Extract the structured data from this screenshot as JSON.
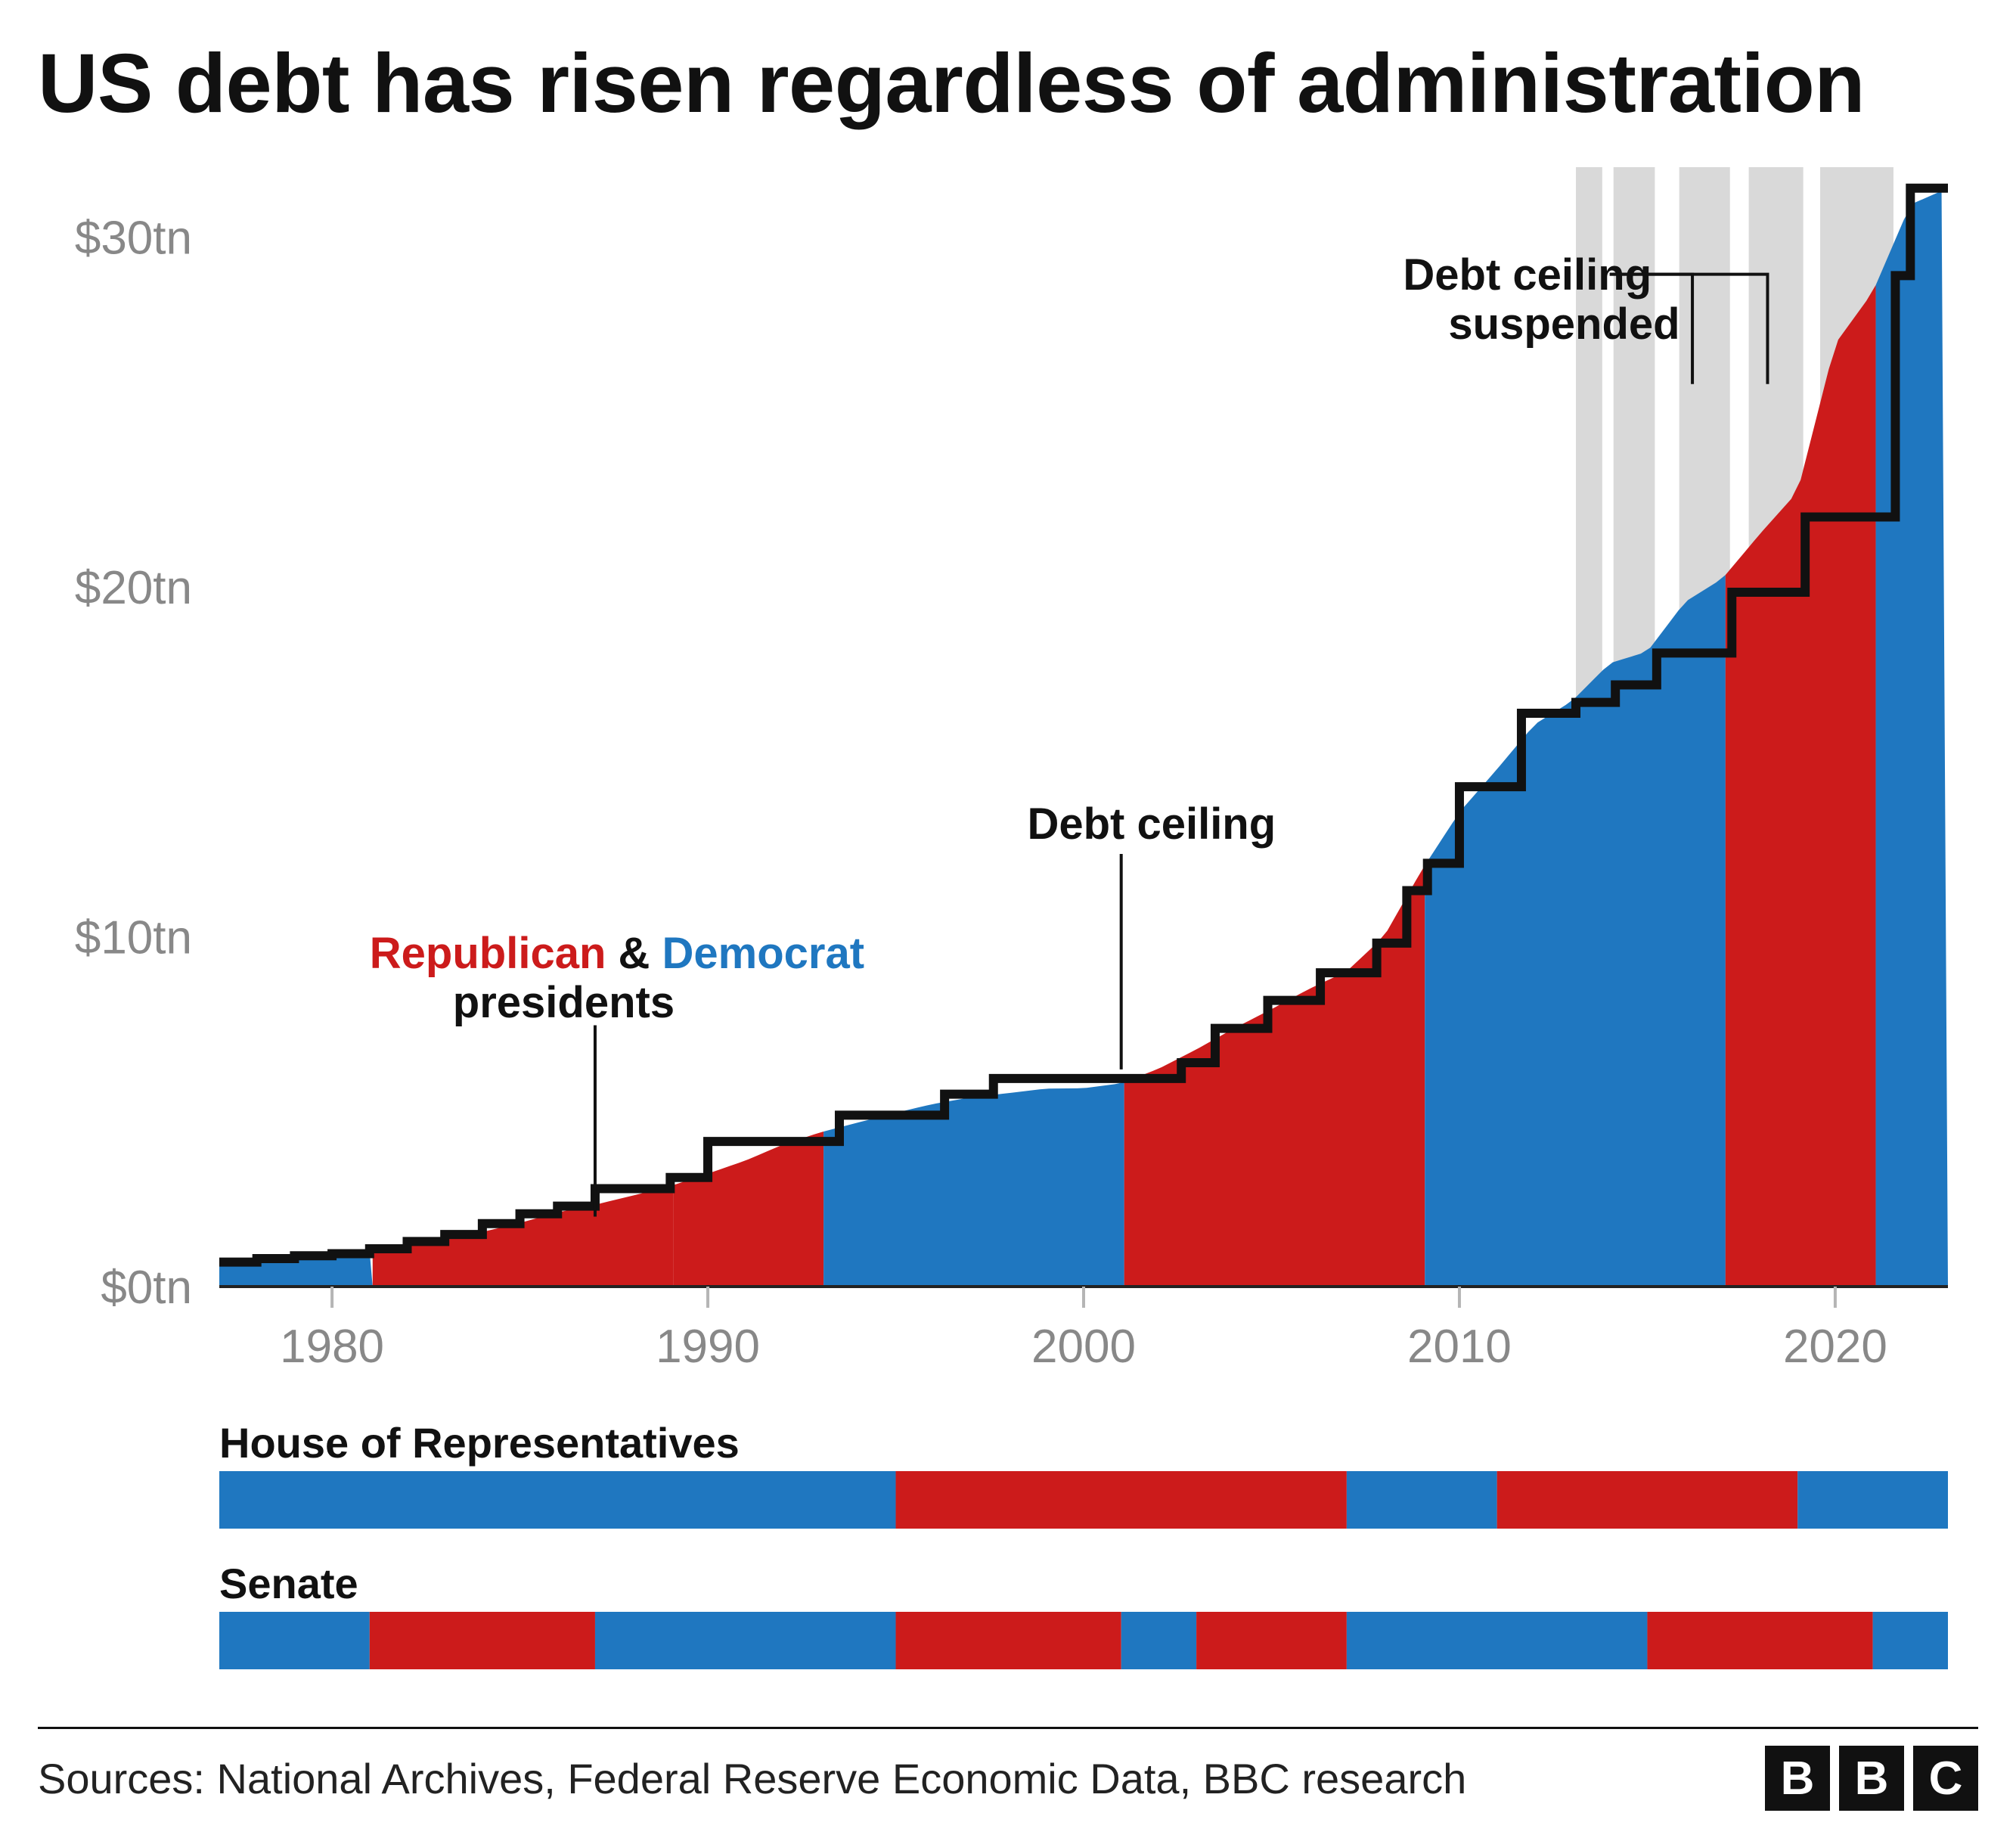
{
  "title": "US debt has risen regardless of administration",
  "source": "Sources: National Archives, Federal Reserve Economic Data, BBC research",
  "logo_letters": [
    "B",
    "B",
    "C"
  ],
  "colors": {
    "republican": "#cc1b1b",
    "democrat": "#1f77c0",
    "ceiling_line": "#111111",
    "suspended_band": "#d9d9d9",
    "grid": "#dcdcdc",
    "axis_text": "#888888",
    "axis_line": "#b5b5b5",
    "baseline": "#222222",
    "text": "#111111",
    "bg": "#ffffff"
  },
  "chart": {
    "type": "area+step",
    "x_start": 1977,
    "x_end": 2023,
    "xticks": [
      1980,
      1990,
      2000,
      2010,
      2020
    ],
    "ylim": [
      0,
      32
    ],
    "yticks": [
      0,
      10,
      20,
      30
    ],
    "ytick_labels": [
      "$0tn",
      "$10tn",
      "$20tn",
      "$30tn"
    ],
    "title_fontsize": 110,
    "axis_fontsize": 62,
    "annot_fontsize": 58,
    "ceiling_line_width": 12,
    "debt": [
      {
        "year": 1977.0,
        "v": 0.7
      },
      {
        "year": 1978.0,
        "v": 0.77
      },
      {
        "year": 1979.0,
        "v": 0.83
      },
      {
        "year": 1980.0,
        "v": 0.91
      },
      {
        "year": 1981.0,
        "v": 1.0
      },
      {
        "year": 1982.0,
        "v": 1.14
      },
      {
        "year": 1983.0,
        "v": 1.37
      },
      {
        "year": 1984.0,
        "v": 1.56
      },
      {
        "year": 1985.0,
        "v": 1.82
      },
      {
        "year": 1986.0,
        "v": 2.12
      },
      {
        "year": 1987.0,
        "v": 2.34
      },
      {
        "year": 1988.0,
        "v": 2.6
      },
      {
        "year": 1989.0,
        "v": 2.87
      },
      {
        "year": 1990.0,
        "v": 3.23
      },
      {
        "year": 1991.0,
        "v": 3.6
      },
      {
        "year": 1992.0,
        "v": 4.06
      },
      {
        "year": 1993.0,
        "v": 4.41
      },
      {
        "year": 1994.0,
        "v": 4.69
      },
      {
        "year": 1995.0,
        "v": 4.97
      },
      {
        "year": 1996.0,
        "v": 5.22
      },
      {
        "year": 1997.0,
        "v": 5.41
      },
      {
        "year": 1998.0,
        "v": 5.53
      },
      {
        "year": 1999.0,
        "v": 5.66
      },
      {
        "year": 2000.0,
        "v": 5.67
      },
      {
        "year": 2001.0,
        "v": 5.81
      },
      {
        "year": 2002.0,
        "v": 6.23
      },
      {
        "year": 2003.0,
        "v": 6.78
      },
      {
        "year": 2004.0,
        "v": 7.38
      },
      {
        "year": 2005.0,
        "v": 7.93
      },
      {
        "year": 2006.0,
        "v": 8.51
      },
      {
        "year": 2007.0,
        "v": 9.01
      },
      {
        "year": 2008.0,
        "v": 10.02
      },
      {
        "year": 2009.0,
        "v": 11.91
      },
      {
        "year": 2010.0,
        "v": 13.56
      },
      {
        "year": 2011.0,
        "v": 14.79
      },
      {
        "year": 2012.0,
        "v": 16.07
      },
      {
        "year": 2013.0,
        "v": 16.74
      },
      {
        "year": 2014.0,
        "v": 17.82
      },
      {
        "year": 2015.0,
        "v": 18.15
      },
      {
        "year": 2016.0,
        "v": 19.57
      },
      {
        "year": 2017.0,
        "v": 20.24
      },
      {
        "year": 2018.0,
        "v": 21.52
      },
      {
        "year": 2019.0,
        "v": 22.72
      },
      {
        "year": 2020.0,
        "v": 26.95
      },
      {
        "year": 2021.0,
        "v": 28.43
      },
      {
        "year": 2022.0,
        "v": 30.93
      },
      {
        "year": 2023.0,
        "v": 31.4
      }
    ],
    "presidents": [
      {
        "start": 1977.0,
        "end": 1981.08,
        "party": "D"
      },
      {
        "start": 1981.08,
        "end": 1989.08,
        "party": "R"
      },
      {
        "start": 1989.08,
        "end": 1993.08,
        "party": "R"
      },
      {
        "start": 1993.08,
        "end": 2001.08,
        "party": "D"
      },
      {
        "start": 2001.08,
        "end": 2009.08,
        "party": "R"
      },
      {
        "start": 2009.08,
        "end": 2017.08,
        "party": "D"
      },
      {
        "start": 2017.08,
        "end": 2021.08,
        "party": "R"
      },
      {
        "start": 2021.08,
        "end": 2023.0,
        "party": "D"
      }
    ],
    "ceiling": [
      {
        "year": 1977.0,
        "v": 0.7
      },
      {
        "year": 1978.0,
        "v": 0.8
      },
      {
        "year": 1979.0,
        "v": 0.88
      },
      {
        "year": 1980.0,
        "v": 0.94
      },
      {
        "year": 1981.0,
        "v": 1.08
      },
      {
        "year": 1982.0,
        "v": 1.29
      },
      {
        "year": 1983.0,
        "v": 1.49
      },
      {
        "year": 1984.0,
        "v": 1.8
      },
      {
        "year": 1985.0,
        "v": 2.08
      },
      {
        "year": 1986.0,
        "v": 2.3
      },
      {
        "year": 1987.0,
        "v": 2.8
      },
      {
        "year": 1988.0,
        "v": 2.8
      },
      {
        "year": 1989.0,
        "v": 3.12
      },
      {
        "year": 1990.0,
        "v": 4.15
      },
      {
        "year": 1993.0,
        "v": 4.15
      },
      {
        "year": 1993.5,
        "v": 4.9
      },
      {
        "year": 1996.0,
        "v": 4.9
      },
      {
        "year": 1996.3,
        "v": 5.5
      },
      {
        "year": 1997.5,
        "v": 5.5
      },
      {
        "year": 1997.6,
        "v": 5.95
      },
      {
        "year": 2002.5,
        "v": 5.95
      },
      {
        "year": 2002.6,
        "v": 6.4
      },
      {
        "year": 2003.4,
        "v": 6.4
      },
      {
        "year": 2003.5,
        "v": 7.38
      },
      {
        "year": 2004.8,
        "v": 7.38
      },
      {
        "year": 2004.9,
        "v": 8.18
      },
      {
        "year": 2006.2,
        "v": 8.18
      },
      {
        "year": 2006.3,
        "v": 8.97
      },
      {
        "year": 2007.7,
        "v": 8.97
      },
      {
        "year": 2007.8,
        "v": 9.82
      },
      {
        "year": 2008.5,
        "v": 9.82
      },
      {
        "year": 2008.6,
        "v": 11.32
      },
      {
        "year": 2009.1,
        "v": 11.32
      },
      {
        "year": 2009.15,
        "v": 12.1
      },
      {
        "year": 2009.95,
        "v": 12.1
      },
      {
        "year": 2010.0,
        "v": 14.29
      },
      {
        "year": 2011.6,
        "v": 14.29
      },
      {
        "year": 2011.65,
        "v": 16.39
      },
      {
        "year": 2013.05,
        "v": 16.39
      },
      {
        "year": 2013.1,
        "v": 16.7
      },
      {
        "year": 2014.1,
        "v": 16.7
      },
      {
        "year": 2014.15,
        "v": 17.2
      },
      {
        "year": 2015.2,
        "v": 17.2
      },
      {
        "year": 2015.25,
        "v": 18.11
      },
      {
        "year": 2015.8,
        "v": 18.11
      },
      {
        "year": 2015.85,
        "v": 18.11
      },
      {
        "year": 2017.2,
        "v": 18.11
      },
      {
        "year": 2017.25,
        "v": 19.85
      },
      {
        "year": 2017.7,
        "v": 19.85
      },
      {
        "year": 2019.15,
        "v": 19.85
      },
      {
        "year": 2019.2,
        "v": 22.0
      },
      {
        "year": 2019.6,
        "v": 22.0
      },
      {
        "year": 2021.55,
        "v": 22.0
      },
      {
        "year": 2021.6,
        "v": 28.9
      },
      {
        "year": 2021.95,
        "v": 28.9
      },
      {
        "year": 2022.0,
        "v": 31.4
      },
      {
        "year": 2023.0,
        "v": 31.4
      }
    ],
    "suspended_bands": [
      {
        "start": 2013.1,
        "end": 2013.8
      },
      {
        "start": 2014.1,
        "end": 2015.2
      },
      {
        "start": 2015.85,
        "end": 2017.2
      },
      {
        "start": 2017.7,
        "end": 2019.15
      },
      {
        "start": 2019.6,
        "end": 2021.55
      }
    ],
    "annotations": {
      "debt_ceiling_label": "Debt ceiling",
      "suspended_label_line1": "Debt ceiling",
      "suspended_label_line2": "suspended",
      "rep_word": "Republican",
      "amp_word": " & ",
      "dem_word": "Democrat",
      "presidents_word": "presidents"
    }
  },
  "house": {
    "label": "House of Representatives",
    "segments": [
      {
        "start": 1977,
        "end": 1995,
        "party": "D"
      },
      {
        "start": 1995,
        "end": 2007,
        "party": "R"
      },
      {
        "start": 2007,
        "end": 2011,
        "party": "D"
      },
      {
        "start": 2011,
        "end": 2019,
        "party": "R"
      },
      {
        "start": 2019,
        "end": 2023,
        "party": "D"
      }
    ]
  },
  "senate": {
    "label": "Senate",
    "segments": [
      {
        "start": 1977,
        "end": 1981,
        "party": "D"
      },
      {
        "start": 1981,
        "end": 1987,
        "party": "R"
      },
      {
        "start": 1987,
        "end": 1995,
        "party": "D"
      },
      {
        "start": 1995,
        "end": 2001,
        "party": "R"
      },
      {
        "start": 2001,
        "end": 2003,
        "party": "D"
      },
      {
        "start": 2003,
        "end": 2007,
        "party": "R"
      },
      {
        "start": 2007,
        "end": 2015,
        "party": "D"
      },
      {
        "start": 2015,
        "end": 2021,
        "party": "R"
      },
      {
        "start": 2021,
        "end": 2023,
        "party": "D"
      }
    ]
  }
}
